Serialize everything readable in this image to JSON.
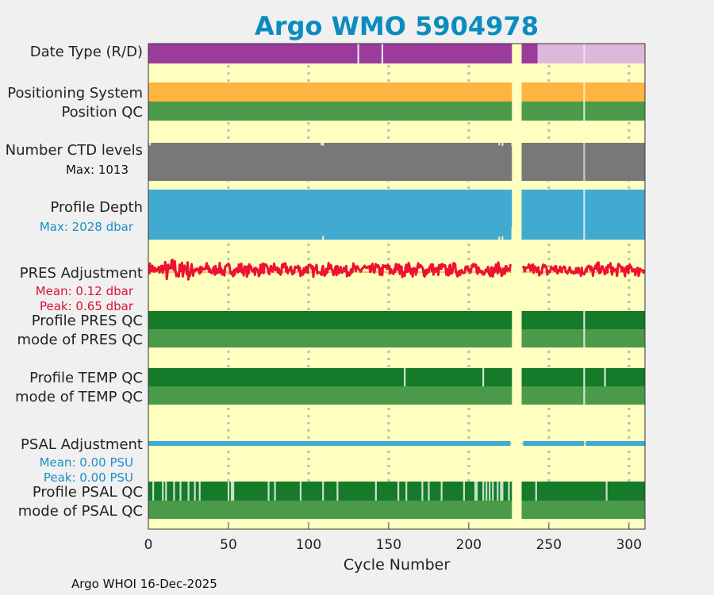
{
  "chart_data": {
    "type": "timeline",
    "title": "Argo WMO 5904978",
    "xlabel": "Cycle Number",
    "xlim": [
      0,
      310
    ],
    "xticks": [
      0,
      50,
      100,
      150,
      200,
      250,
      300
    ],
    "row_labels": {
      "date_type": "Date Type (R/D)",
      "positioning_system": "Positioning System",
      "position_qc": "Position QC",
      "ctd_levels": "Number CTD levels",
      "profile_depth": "Profile Depth",
      "pres_adjustment": "PRES Adjustment",
      "profile_pres_qc": "Profile PRES QC",
      "mode_pres_qc": "mode of PRES QC",
      "profile_temp_qc": "Profile TEMP QC",
      "mode_temp_qc": "mode of TEMP QC",
      "psal_adjustment": "PSAL Adjustment",
      "profile_psal_qc": "Profile PSAL QC",
      "mode_psal_qc": "mode of PSAL QC"
    },
    "stats": {
      "ctd_max": "Max: 1013",
      "depth_max": "Max: 2028 dbar",
      "pres_mean": "Mean: 0.12 dbar",
      "pres_peak": "Peak: 0.65 dbar",
      "psal_mean": "Mean: 0.00 PSU",
      "psal_peak": "Peak: 0.00 PSU"
    },
    "footer": "Argo WHOI 16-Dec-2025",
    "data_gap_cycles": [
      227,
      233
    ],
    "date_type": {
      "realtime_color": "#ddb8dd",
      "delayed_color": "#9b3b9b",
      "delayed_ranges": [
        [
          0,
          227
        ],
        [
          233,
          243
        ]
      ],
      "realtime_ranges": [
        [
          243,
          310
        ]
      ],
      "marker_cycles": [
        131,
        146,
        272
      ]
    },
    "qc_marker_cycles": {
      "positioning": [
        272
      ],
      "position_qc": [
        272
      ],
      "pres_qc": [
        272
      ],
      "temp_qc": [
        160,
        209,
        272,
        285
      ],
      "psal_marker_cycles": [
        3,
        9,
        11,
        16,
        20,
        25,
        29,
        32,
        50,
        52,
        53,
        75,
        79,
        95,
        109,
        118,
        142,
        156,
        161,
        171,
        175,
        183,
        197,
        204,
        205,
        209,
        211,
        213,
        215,
        218,
        220,
        221,
        225,
        242,
        286
      ]
    },
    "ctd_levels": {
      "max": 1013,
      "typical": 1013,
      "dips": [
        [
          1,
          940
        ],
        [
          108,
          950
        ],
        [
          109,
          935
        ],
        [
          219,
          945
        ],
        [
          221,
          930
        ],
        [
          227,
          920
        ],
        [
          233,
          1013
        ]
      ]
    },
    "profile_depth": {
      "max_dbar": 2028,
      "typical_dbar": 2000,
      "dips": [
        [
          109,
          1850
        ],
        [
          219,
          1880
        ],
        [
          221,
          1860
        ],
        [
          227,
          1500
        ]
      ]
    },
    "pres_adjustment": {
      "mean_dbar": 0.12,
      "peak_dbar": 0.65,
      "ylim": [
        -0.7,
        0.7
      ]
    },
    "psal_adjustment": {
      "mean_psu": 0.0,
      "peak_psu": 0.0
    },
    "colors": {
      "background": "#ffffc0",
      "purple": "#9b3b9b",
      "orange": "#ffb340",
      "green_mid": "#4a9a4a",
      "green_dark": "#157a2a",
      "gray": "#787878",
      "blue": "#40aad0",
      "red": "#ee1133",
      "title": "#0a8cc0",
      "stat_blue": "#1a8fc8",
      "stat_red": "#dd1133",
      "grid": "#bbbbbb"
    }
  }
}
